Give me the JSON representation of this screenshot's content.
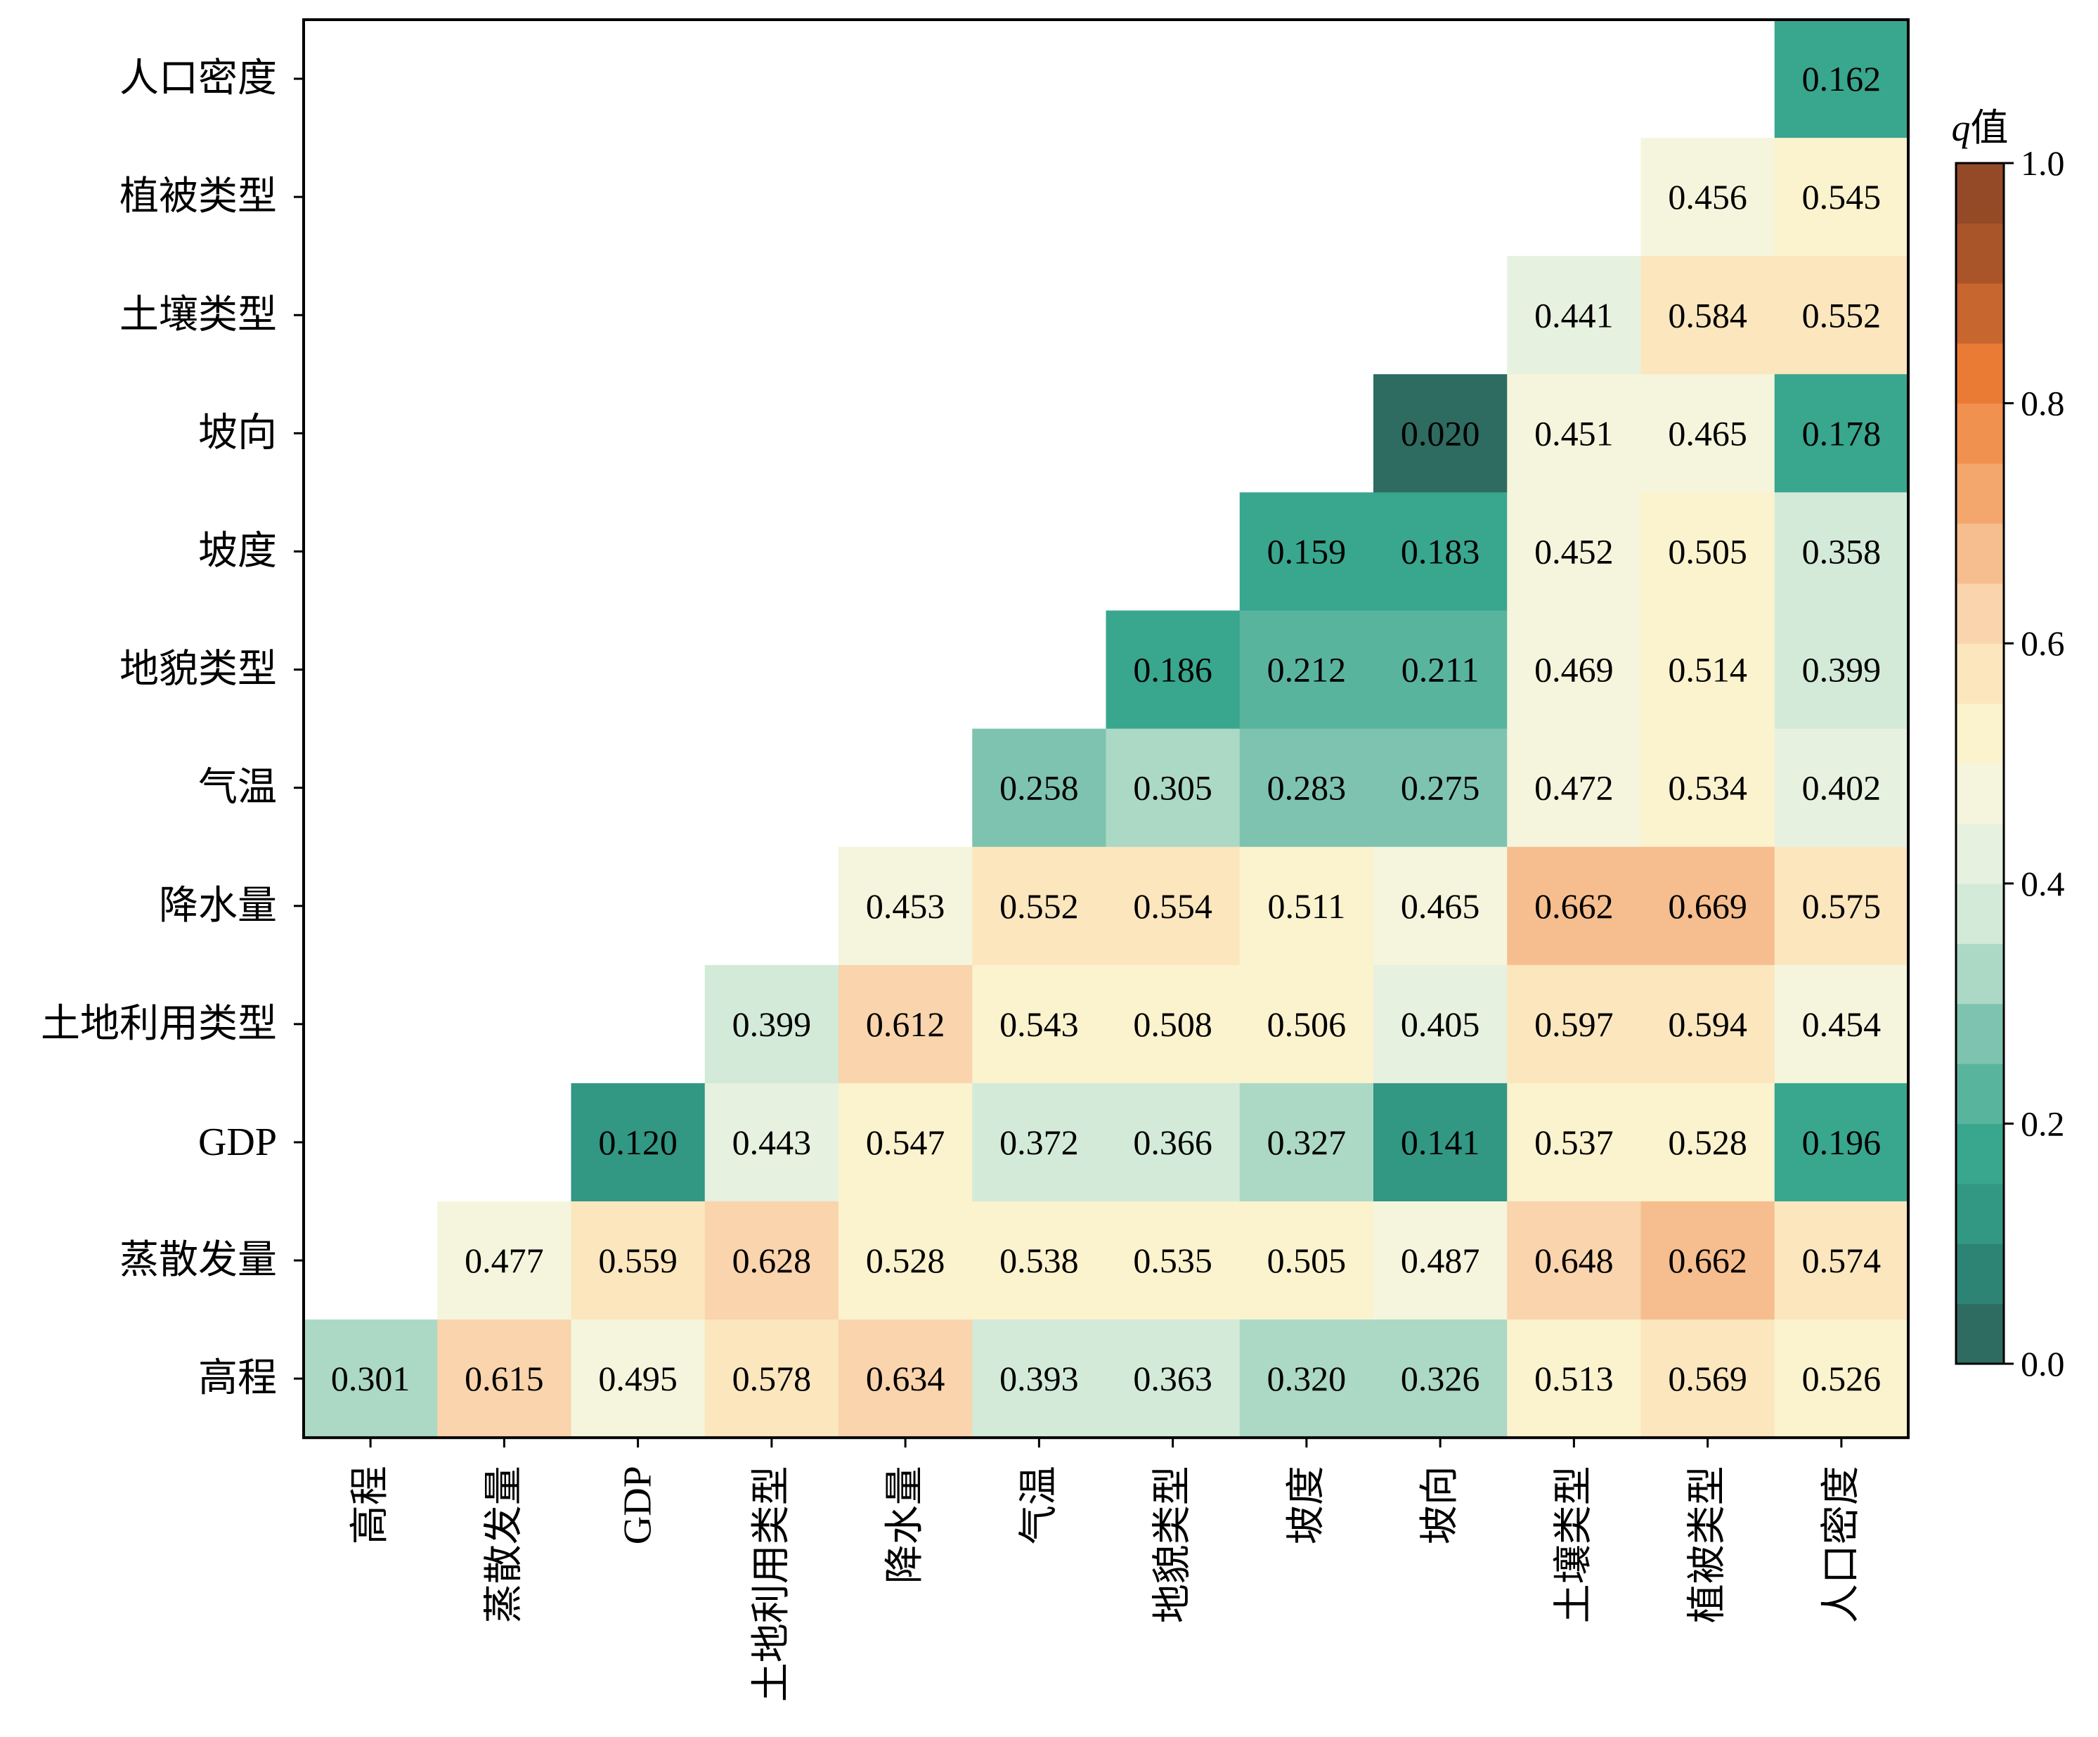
{
  "chart_data": {
    "type": "heatmap",
    "variables": [
      "高程",
      "蒸散发量",
      "GDP",
      "土地利用类型",
      "降水量",
      "气温",
      "地貌类型",
      "坡度",
      "坡向",
      "土壤类型",
      "植被类型",
      "人口密度"
    ],
    "rows_top_to_bottom": [
      "人口密度",
      "植被类型",
      "土壤类型",
      "坡向",
      "坡度",
      "地貌类型",
      "气温",
      "降水量",
      "土地利用类型",
      "GDP",
      "蒸散发量",
      "高程"
    ],
    "columns_left_to_right": [
      "高程",
      "蒸散发量",
      "GDP",
      "土地利用类型",
      "降水量",
      "气温",
      "地貌类型",
      "坡度",
      "坡向",
      "土壤类型",
      "植被类型",
      "人口密度"
    ],
    "values": [
      [
        null,
        null,
        null,
        null,
        null,
        null,
        null,
        null,
        null,
        null,
        null,
        "0.162"
      ],
      [
        null,
        null,
        null,
        null,
        null,
        null,
        null,
        null,
        null,
        null,
        "0.456",
        "0.545"
      ],
      [
        null,
        null,
        null,
        null,
        null,
        null,
        null,
        null,
        null,
        "0.441",
        "0.584",
        "0.552"
      ],
      [
        null,
        null,
        null,
        null,
        null,
        null,
        null,
        null,
        "0.020",
        "0.451",
        "0.465",
        "0.178"
      ],
      [
        null,
        null,
        null,
        null,
        null,
        null,
        null,
        "0.159",
        "0.183",
        "0.452",
        "0.505",
        "0.358"
      ],
      [
        null,
        null,
        null,
        null,
        null,
        null,
        "0.186",
        "0.212",
        "0.211",
        "0.469",
        "0.514",
        "0.399"
      ],
      [
        null,
        null,
        null,
        null,
        null,
        "0.258",
        "0.305",
        "0.283",
        "0.275",
        "0.472",
        "0.534",
        "0.402"
      ],
      [
        null,
        null,
        null,
        null,
        "0.453",
        "0.552",
        "0.554",
        "0.511",
        "0.465",
        "0.662",
        "0.669",
        "0.575"
      ],
      [
        null,
        null,
        null,
        "0.399",
        "0.612",
        "0.543",
        "0.508",
        "0.506",
        "0.405",
        "0.597",
        "0.594",
        "0.454"
      ],
      [
        null,
        null,
        "0.120",
        "0.443",
        "0.547",
        "0.372",
        "0.366",
        "0.327",
        "0.141",
        "0.537",
        "0.528",
        "0.196"
      ],
      [
        null,
        "0.477",
        "0.559",
        "0.628",
        "0.528",
        "0.538",
        "0.535",
        "0.505",
        "0.487",
        "0.648",
        "0.662",
        "0.574"
      ],
      [
        "0.301",
        "0.615",
        "0.495",
        "0.578",
        "0.634",
        "0.393",
        "0.363",
        "0.320",
        "0.326",
        "0.513",
        "0.569",
        "0.526"
      ]
    ],
    "colorbar": {
      "title": "q值",
      "range": [
        0.0,
        1.0
      ],
      "ticks": [
        "0.0",
        "0.2",
        "0.4",
        "0.6",
        "0.8",
        "1.0"
      ],
      "levels": 20,
      "colormap": [
        "#2e5e55",
        "#2d8c7c",
        "#3aa88f",
        "#7cc2ae",
        "#cfe8d8",
        "#f2f6e2",
        "#fdf1c8",
        "#f8d0a8",
        "#f4a66a",
        "#ef7e36",
        "#b0582a",
        "#8a4424"
      ]
    }
  }
}
